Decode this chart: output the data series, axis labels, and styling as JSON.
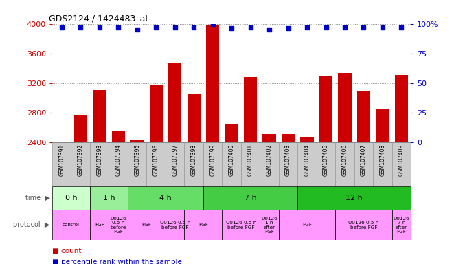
{
  "title": "GDS2124 / 1424483_at",
  "samples": [
    "GSM107391",
    "GSM107392",
    "GSM107393",
    "GSM107394",
    "GSM107395",
    "GSM107396",
    "GSM107397",
    "GSM107398",
    "GSM107399",
    "GSM107400",
    "GSM107401",
    "GSM107402",
    "GSM107403",
    "GSM107404",
    "GSM107405",
    "GSM107406",
    "GSM107407",
    "GSM107408",
    "GSM107409"
  ],
  "counts": [
    2415,
    2760,
    3110,
    2560,
    2430,
    3170,
    3470,
    3060,
    3980,
    2640,
    3280,
    2510,
    2510,
    2470,
    3290,
    3340,
    3090,
    2860,
    3310
  ],
  "percentiles": [
    97,
    97,
    97,
    97,
    95,
    97,
    97,
    97,
    100,
    96,
    97,
    95,
    96,
    97,
    97,
    97,
    97,
    97,
    97
  ],
  "ylim_left": [
    2400,
    4000
  ],
  "ylim_right": [
    0,
    100
  ],
  "yticks_left": [
    2400,
    2800,
    3200,
    3600,
    4000
  ],
  "yticks_right": [
    0,
    25,
    50,
    75,
    100
  ],
  "bar_color": "#cc0000",
  "dot_color": "#0000cc",
  "grid_color": "#888888",
  "bg_color": "#ffffff",
  "sample_bg": "#cccccc",
  "time_groups": [
    {
      "label": "0 h",
      "start": 0,
      "end": 2,
      "color": "#ccffcc"
    },
    {
      "label": "1 h",
      "start": 2,
      "end": 4,
      "color": "#99ee99"
    },
    {
      "label": "4 h",
      "start": 4,
      "end": 8,
      "color": "#66dd66"
    },
    {
      "label": "7 h",
      "start": 8,
      "end": 13,
      "color": "#44cc44"
    },
    {
      "label": "12 h",
      "start": 13,
      "end": 19,
      "color": "#22bb22"
    }
  ],
  "protocol_groups": [
    {
      "label": "control",
      "start": 0,
      "end": 2
    },
    {
      "label": "FGF",
      "start": 2,
      "end": 3
    },
    {
      "label": "U0126\n0.5 h\nbefore\nFGF",
      "start": 3,
      "end": 4
    },
    {
      "label": "FGF",
      "start": 4,
      "end": 6
    },
    {
      "label": "U0126 0.5 h\nbefore FGF",
      "start": 6,
      "end": 7
    },
    {
      "label": "FGF",
      "start": 7,
      "end": 9
    },
    {
      "label": "U0126 0.5 h\nbefore FGF",
      "start": 9,
      "end": 11
    },
    {
      "label": "U0126\n1 h\nafter\nFGF",
      "start": 11,
      "end": 12
    },
    {
      "label": "FGF",
      "start": 12,
      "end": 15
    },
    {
      "label": "U0126 0.5 h\nbefore FGF",
      "start": 15,
      "end": 18
    },
    {
      "label": "U0126\n7 h\nafter\nFGF",
      "start": 18,
      "end": 19
    }
  ],
  "proto_color": "#ff99ff",
  "tick_label_color": "#cc0000",
  "right_tick_color": "#0000cc",
  "legend_count_color": "#cc0000",
  "legend_pct_color": "#0000cc"
}
